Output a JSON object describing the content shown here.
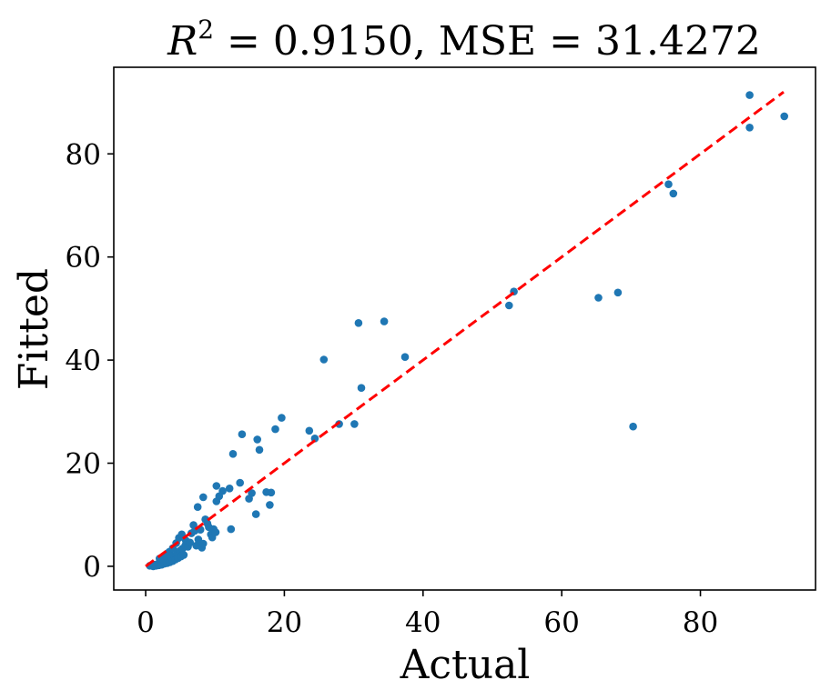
{
  "chart_data": {
    "type": "scatter",
    "title": {
      "r_symbol": "R",
      "r_exponent": "2",
      "r2_text": " = 0.9150, MSE = 31.4272",
      "r2": 0.915,
      "mse": 31.4272
    },
    "xlabel": "Actual",
    "ylabel": "Fitted",
    "xlim": [
      -4.6,
      96.6
    ],
    "ylim": [
      -4.6,
      96.8
    ],
    "xticks": [
      0,
      20,
      40,
      60,
      80
    ],
    "yticks": [
      0,
      20,
      40,
      60,
      80
    ],
    "xtick_labels": [
      "0",
      "20",
      "40",
      "60",
      "80"
    ],
    "ytick_labels": [
      "0",
      "20",
      "40",
      "60",
      "80"
    ],
    "point_color": "#1f77b4",
    "line_color": "#ff0000",
    "reference_line": {
      "style": "dashed",
      "x": [
        0,
        92
      ],
      "y": [
        0,
        92
      ]
    },
    "points": [
      [
        0.6,
        0.1
      ],
      [
        0.9,
        0.2
      ],
      [
        1.1,
        0.0
      ],
      [
        1.3,
        0.3
      ],
      [
        1.5,
        0.1
      ],
      [
        1.7,
        0.4
      ],
      [
        1.9,
        0.2
      ],
      [
        2.1,
        0.6
      ],
      [
        2.3,
        0.3
      ],
      [
        2.5,
        0.8
      ],
      [
        2.7,
        0.5
      ],
      [
        2.9,
        1.0
      ],
      [
        3.1,
        0.6
      ],
      [
        3.3,
        1.2
      ],
      [
        3.5,
        0.8
      ],
      [
        3.7,
        1.5
      ],
      [
        3.9,
        1.0
      ],
      [
        4.1,
        2.0
      ],
      [
        4.3,
        1.3
      ],
      [
        4.5,
        2.6
      ],
      [
        4.7,
        1.6
      ],
      [
        4.9,
        3.0
      ],
      [
        5.1,
        1.9
      ],
      [
        5.3,
        3.4
      ],
      [
        5.5,
        2.2
      ],
      [
        5.7,
        4.0
      ],
      [
        2.0,
        1.5
      ],
      [
        2.8,
        2.1
      ],
      [
        3.4,
        2.8
      ],
      [
        3.9,
        3.5
      ],
      [
        4.4,
        4.5
      ],
      [
        4.8,
        5.5
      ],
      [
        5.2,
        6.2
      ],
      [
        5.8,
        5.0
      ],
      [
        6.1,
        3.8
      ],
      [
        6.4,
        4.6
      ],
      [
        6.6,
        6.4
      ],
      [
        6.9,
        8.0
      ],
      [
        7.1,
        6.9
      ],
      [
        7.3,
        4.0
      ],
      [
        7.6,
        5.2
      ],
      [
        7.9,
        7.1
      ],
      [
        8.1,
        3.6
      ],
      [
        8.3,
        4.4
      ],
      [
        8.6,
        9.1
      ],
      [
        8.9,
        8.3
      ],
      [
        9.1,
        7.6
      ],
      [
        9.4,
        6.2
      ],
      [
        9.6,
        5.6
      ],
      [
        9.8,
        7.2
      ],
      [
        10.1,
        6.6
      ],
      [
        7.5,
        11.5
      ],
      [
        8.3,
        13.4
      ],
      [
        10.2,
        15.6
      ],
      [
        10.2,
        12.6
      ],
      [
        10.6,
        13.6
      ],
      [
        11.1,
        14.6
      ],
      [
        12.1,
        15.1
      ],
      [
        12.3,
        7.2
      ],
      [
        12.6,
        21.8
      ],
      [
        13.6,
        16.2
      ],
      [
        13.9,
        25.6
      ],
      [
        14.9,
        13.1
      ],
      [
        15.3,
        14.2
      ],
      [
        15.9,
        10.1
      ],
      [
        16.1,
        24.6
      ],
      [
        16.4,
        22.6
      ],
      [
        17.4,
        14.4
      ],
      [
        17.9,
        11.9
      ],
      [
        18.1,
        14.3
      ],
      [
        18.7,
        26.6
      ],
      [
        19.6,
        28.8
      ],
      [
        23.6,
        26.3
      ],
      [
        24.4,
        24.8
      ],
      [
        25.7,
        40.1
      ],
      [
        27.9,
        27.6
      ],
      [
        30.1,
        27.6
      ],
      [
        30.7,
        47.2
      ],
      [
        31.1,
        34.6
      ],
      [
        34.4,
        47.5
      ],
      [
        37.4,
        40.6
      ],
      [
        52.4,
        50.6
      ],
      [
        53.1,
        53.3
      ],
      [
        65.3,
        52.1
      ],
      [
        68.1,
        53.1
      ],
      [
        70.3,
        27.1
      ],
      [
        75.4,
        74.1
      ],
      [
        76.1,
        72.3
      ],
      [
        87.1,
        91.4
      ],
      [
        87.1,
        85.1
      ],
      [
        92.1,
        87.3
      ]
    ]
  }
}
